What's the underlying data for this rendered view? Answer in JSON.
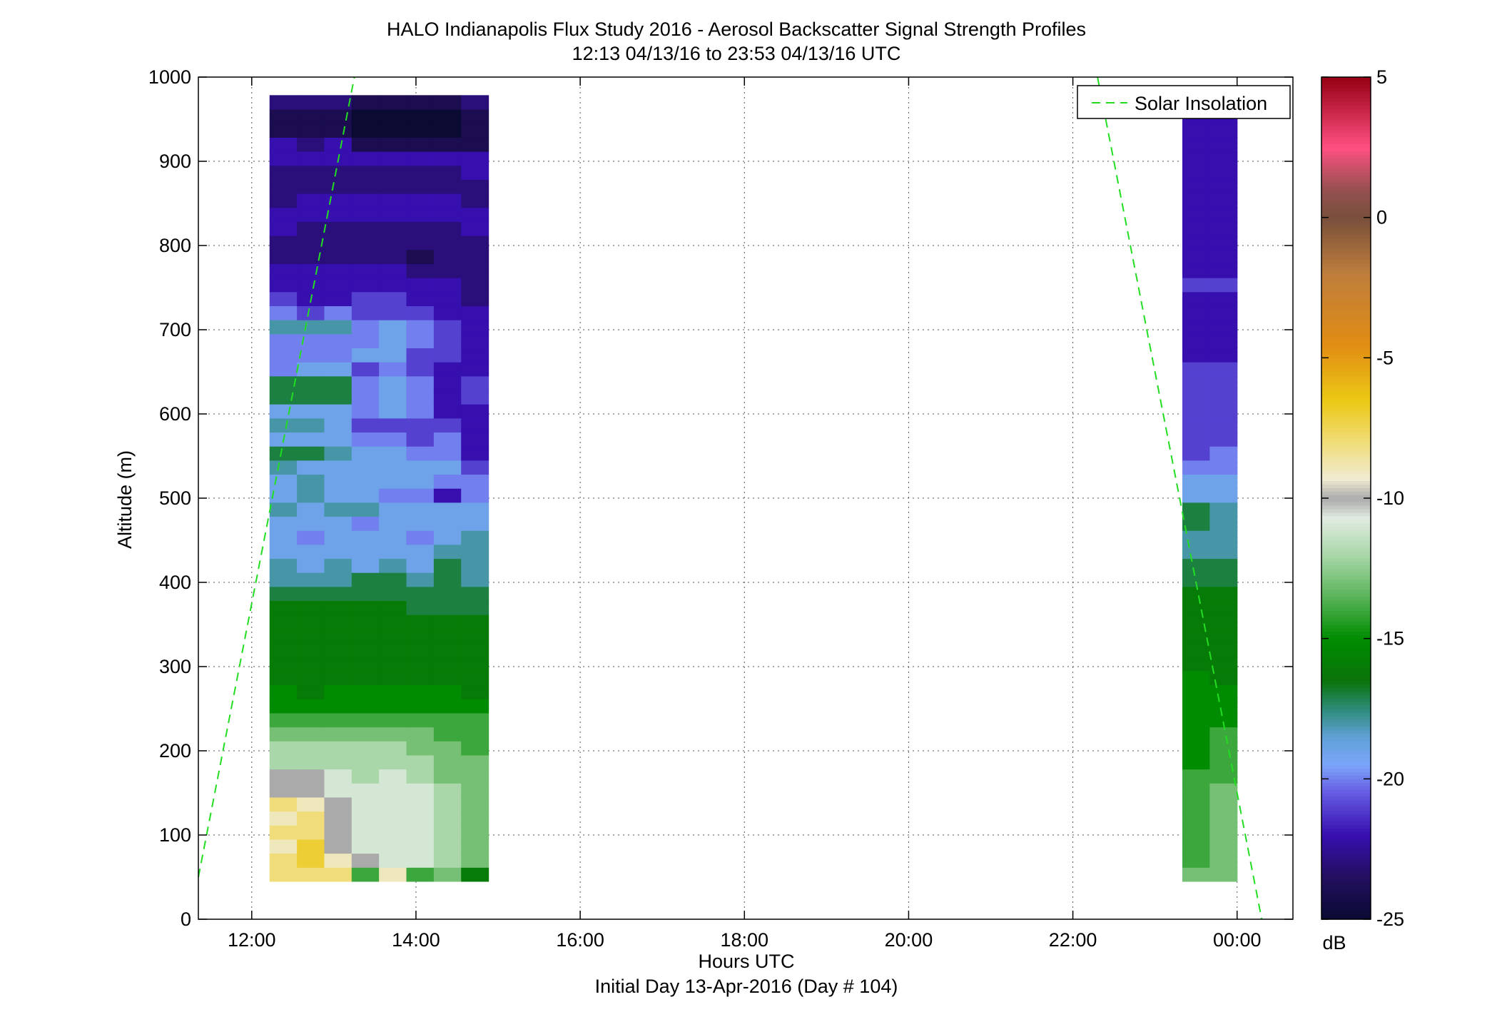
{
  "chart_data": {
    "type": "heatmap",
    "title": "HALO Indianapolis Flux Study 2016 - Aerosol Backscatter Signal Strength Profiles",
    "subtitle": "12:13 04/13/16 to 23:53 04/13/16  UTC",
    "xlabel": "Hours UTC",
    "xlabel2": "Initial Day 13-Apr-2016 (Day # 104)",
    "ylabel": "Altitude (m)",
    "x_ticks": [
      12,
      14,
      16,
      18,
      20,
      22,
      24
    ],
    "x_tick_labels": [
      "12:00",
      "14:00",
      "16:00",
      "18:00",
      "20:00",
      "22:00",
      "00:00"
    ],
    "xlim": [
      11.35,
      24.68
    ],
    "y_ticks": [
      0,
      100,
      200,
      300,
      400,
      500,
      600,
      700,
      800,
      900,
      1000
    ],
    "y_tick_labels": [
      "0",
      "100",
      "200",
      "300",
      "400",
      "500",
      "600",
      "700",
      "800",
      "900",
      "1000"
    ],
    "ylim": [
      0,
      1000
    ],
    "grid": true,
    "colorbar": {
      "label": "dB",
      "ticks": [
        5,
        0,
        -5,
        -10,
        -15,
        -20,
        -25
      ],
      "tick_labels": [
        "5",
        "0",
        "-5",
        "-10",
        "-15",
        "-20",
        "-25"
      ],
      "lim": [
        -25,
        5
      ]
    },
    "legend": {
      "entries": [
        "Solar Insolation"
      ],
      "placement": "top-right"
    },
    "solar_insolation": [
      {
        "x": [
          11.35,
          13.25
        ],
        "y": [
          50,
          1000
        ]
      },
      {
        "x": [
          22.3,
          24.3
        ],
        "y": [
          1000,
          0
        ]
      }
    ],
    "profiles": {
      "altitude_start": 45,
      "altitude_step": 16.67,
      "blocks": [
        {
          "start_hour": 12.2167,
          "step_hours": 0.3333,
          "columns": [
            [
              -8,
              -8,
              -9,
              -8,
              -9,
              -8,
              -10,
              -10,
              -12,
              -12,
              -13,
              -14,
              -15,
              -15,
              -16,
              -16,
              -16,
              -16,
              -16,
              -16,
              -17,
              -18,
              -18,
              -19,
              -19,
              -19,
              -18,
              -19,
              -19,
              -18,
              -17,
              -19,
              -18,
              -19,
              -17,
              -17,
              -20,
              -20,
              -20,
              -18,
              -20,
              -21,
              -22,
              -22,
              -23,
              -23,
              -22,
              -22,
              -23,
              -23,
              -23,
              -22,
              -22,
              -24,
              -24,
              -23
            ],
            [
              -8,
              -7,
              -7,
              -8,
              -8,
              -9,
              -10,
              -10,
              -12,
              -12,
              -13,
              -14,
              -15,
              -16,
              -16,
              -16,
              -16,
              -16,
              -16,
              -16,
              -17,
              -18,
              -19,
              -19,
              -20,
              -19,
              -19,
              -18,
              -18,
              -19,
              -17,
              -19,
              -18,
              -19,
              -17,
              -17,
              -19,
              -20,
              -20,
              -18,
              -21,
              -22,
              -22,
              -22,
              -23,
              -23,
              -23,
              -22,
              -22,
              -23,
              -23,
              -22,
              -23,
              -24,
              -24,
              -23
            ],
            [
              -8,
              -9,
              -10,
              -10,
              -10,
              -10,
              -11,
              -11,
              -12,
              -12,
              -13,
              -14,
              -15,
              -15,
              -16,
              -16,
              -16,
              -16,
              -16,
              -16,
              -17,
              -18,
              -18,
              -19,
              -19,
              -19,
              -18,
              -19,
              -19,
              -19,
              -18,
              -19,
              -19,
              -19,
              -17,
              -17,
              -19,
              -20,
              -20,
              -18,
              -20,
              -22,
              -22,
              -22,
              -23,
              -23,
              -23,
              -22,
              -22,
              -23,
              -23,
              -22,
              -22,
              -24,
              -24,
              -23
            ],
            [
              -14,
              -10,
              -11,
              -11,
              -11,
              -11,
              -11,
              -12,
              -12,
              -12,
              -13,
              -14,
              -15,
              -15,
              -16,
              -16,
              -16,
              -16,
              -16,
              -16,
              -17,
              -17,
              -19,
              -19,
              -19,
              -20,
              -18,
              -19,
              -19,
              -19,
              -19,
              -20,
              -21,
              -20,
              -20,
              -20,
              -21,
              -19,
              -20,
              -20,
              -21,
              -21,
              -22,
              -22,
              -23,
              -23,
              -23,
              -22,
              -22,
              -23,
              -23,
              -22,
              -24,
              -25,
              -25,
              -24
            ],
            [
              -9,
              -11,
              -11,
              -11,
              -11,
              -11,
              -11,
              -11,
              -12,
              -12,
              -13,
              -14,
              -15,
              -15,
              -16,
              -16,
              -16,
              -16,
              -16,
              -16,
              -17,
              -17,
              -18,
              -19,
              -19,
              -19,
              -19,
              -20,
              -19,
              -19,
              -19,
              -20,
              -21,
              -19,
              -19,
              -19,
              -20,
              -19,
              -19,
              -19,
              -21,
              -21,
              -22,
              -22,
              -23,
              -23,
              -23,
              -22,
              -22,
              -23,
              -23,
              -22,
              -24,
              -25,
              -25,
              -24
            ],
            [
              -14,
              -11,
              -11,
              -11,
              -11,
              -11,
              -11,
              -12,
              -12,
              -13,
              -13,
              -14,
              -15,
              -15,
              -16,
              -16,
              -16,
              -16,
              -16,
              -17,
              -17,
              -18,
              -19,
              -19,
              -20,
              -19,
              -19,
              -20,
              -19,
              -19,
              -20,
              -21,
              -21,
              -20,
              -20,
              -20,
              -21,
              -21,
              -20,
              -20,
              -21,
              -22,
              -22,
              -23,
              -24,
              -23,
              -23,
              -22,
              -22,
              -23,
              -23,
              -22,
              -24,
              -25,
              -25,
              -24
            ],
            [
              -13,
              -12,
              -12,
              -12,
              -12,
              -12,
              -12,
              -13,
              -13,
              -13,
              -14,
              -14,
              -15,
              -15,
              -16,
              -16,
              -16,
              -16,
              -16,
              -17,
              -17,
              -17,
              -17,
              -18,
              -19,
              -19,
              -19,
              -22,
              -20,
              -19,
              -20,
              -20,
              -21,
              -22,
              -22,
              -22,
              -22,
              -21,
              -21,
              -21,
              -22,
              -22,
              -22,
              -23,
              -23,
              -23,
              -23,
              -22,
              -22,
              -23,
              -23,
              -22,
              -24,
              -25,
              -25,
              -24
            ],
            [
              -16,
              -13,
              -13,
              -13,
              -13,
              -13,
              -13,
              -13,
              -13,
              -14,
              -14,
              -14,
              -15,
              -16,
              -16,
              -16,
              -16,
              -16,
              -16,
              -17,
              -17,
              -18,
              -18,
              -18,
              -18,
              -19,
              -19,
              -20,
              -20,
              -21,
              -22,
              -22,
              -22,
              -22,
              -21,
              -21,
              -22,
              -22,
              -22,
              -22,
              -22,
              -23,
              -23,
              -23,
              -23,
              -23,
              -22,
              -22,
              -23,
              -23,
              -22,
              -22,
              -24,
              -24,
              -24,
              -23
            ]
          ]
        },
        {
          "start_hour": 23.3333,
          "step_hours": 0.3333,
          "columns": [
            [
              -13,
              -14,
              -14,
              -14,
              -14,
              -14,
              -14,
              -14,
              -15,
              -15,
              -15,
              -15,
              -15,
              -15,
              -15,
              -16,
              -16,
              -16,
              -16,
              -16,
              -16,
              -17,
              -17,
              -18,
              -18,
              -17,
              -17,
              -19,
              -19,
              -20,
              -21,
              -21,
              -21,
              -21,
              -21,
              -21,
              -21,
              -22,
              -22,
              -22,
              -22,
              -22,
              -21,
              -22,
              -22,
              -22,
              -22,
              -22,
              -22,
              -22,
              -22,
              -22,
              -22,
              -22,
              -22,
              -22
            ],
            [
              -13,
              -13,
              -13,
              -13,
              -13,
              -13,
              -13,
              -14,
              -14,
              -14,
              -14,
              -15,
              -15,
              -15,
              -16,
              -16,
              -16,
              -16,
              -16,
              -16,
              -16,
              -17,
              -17,
              -18,
              -18,
              -18,
              -18,
              -19,
              -19,
              -20,
              -20,
              -21,
              -21,
              -21,
              -21,
              -21,
              -21,
              -22,
              -22,
              -22,
              -22,
              -22,
              -21,
              -22,
              -22,
              -22,
              -22,
              -22,
              -22,
              -22,
              -22,
              -22,
              -22,
              -22,
              -22,
              -22
            ]
          ]
        }
      ]
    }
  }
}
